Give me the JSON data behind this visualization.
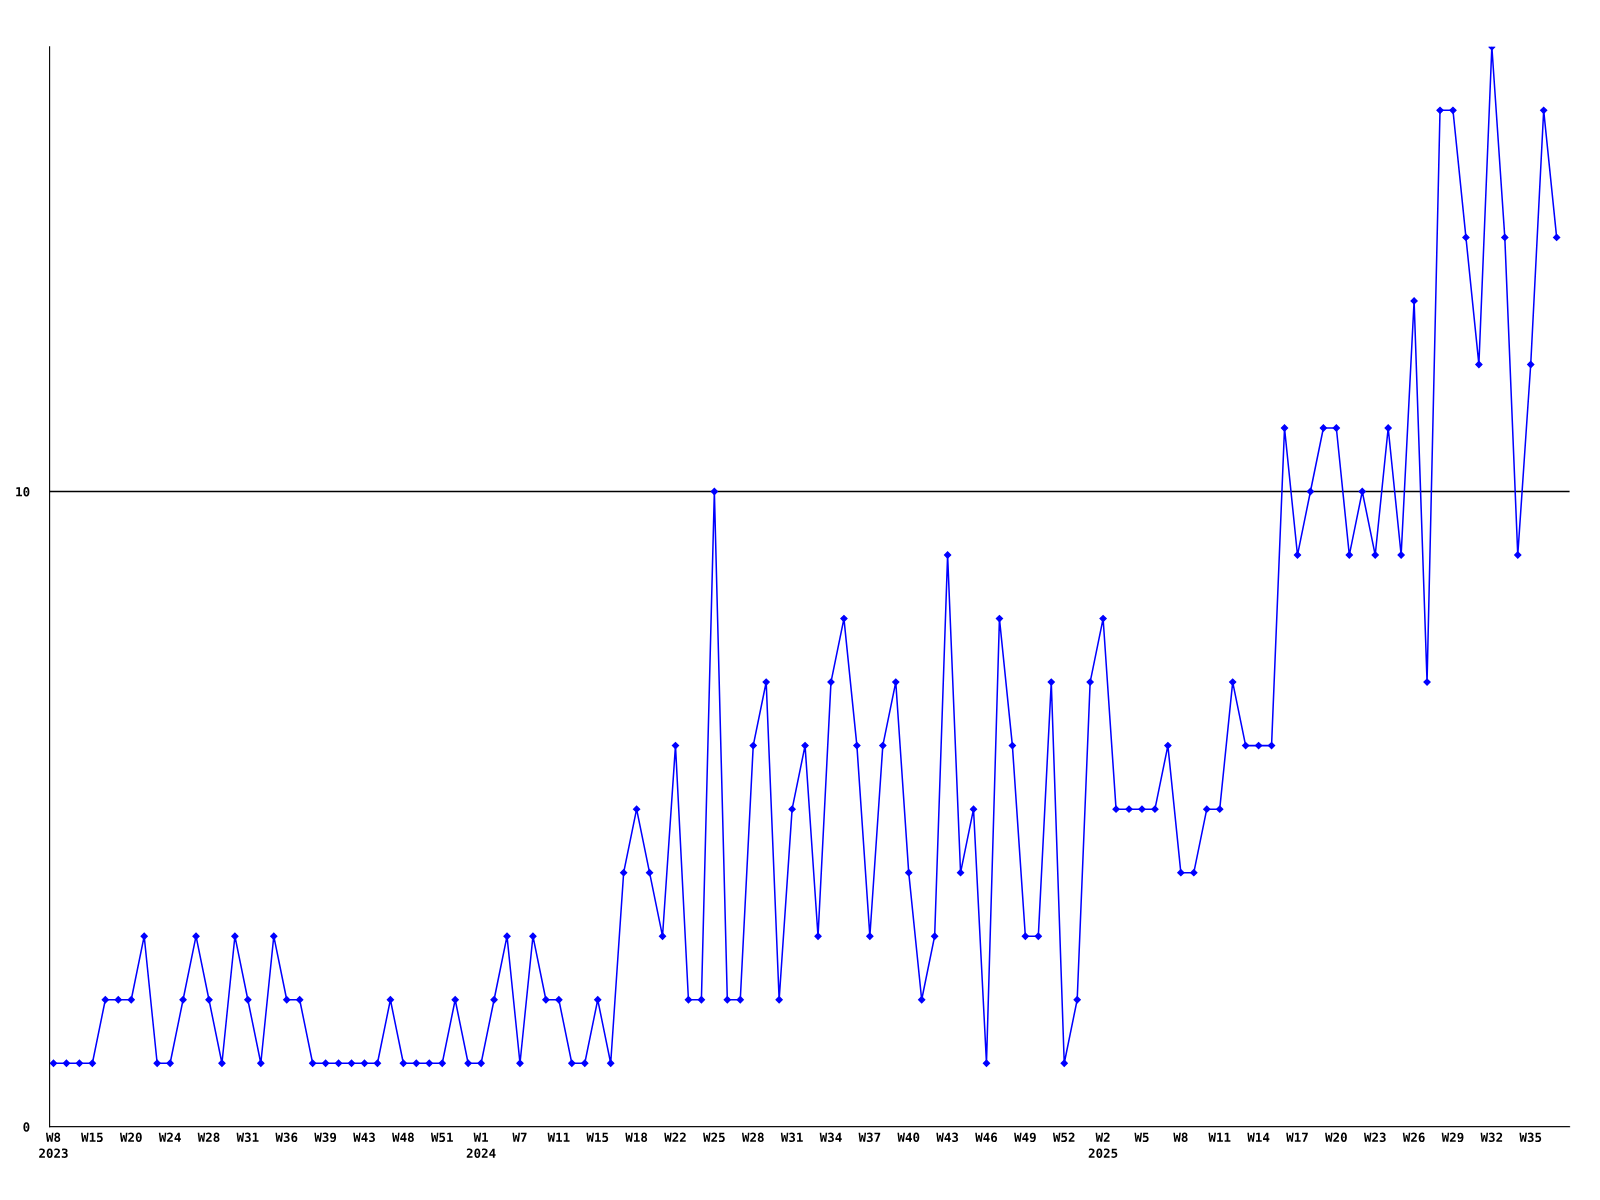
{
  "chart_data": {
    "type": "line",
    "categories": [
      "W8\n2023",
      null,
      null,
      "W15",
      null,
      null,
      "W20",
      null,
      null,
      "W24",
      null,
      null,
      "W28",
      null,
      null,
      "W31",
      null,
      null,
      "W36",
      null,
      null,
      "W39",
      null,
      null,
      "W43",
      null,
      null,
      "W48",
      null,
      null,
      "W51",
      null,
      null,
      "W1\n2024",
      null,
      null,
      "W7",
      null,
      null,
      "W11",
      null,
      null,
      "W15",
      null,
      null,
      "W18",
      null,
      null,
      "W22",
      null,
      null,
      "W25",
      null,
      null,
      "W28",
      null,
      null,
      "W31",
      null,
      null,
      "W34",
      null,
      null,
      "W37",
      null,
      null,
      "W40",
      null,
      null,
      "W43",
      null,
      null,
      "W46",
      null,
      null,
      "W49",
      null,
      null,
      "W52",
      null,
      null,
      "W2\n2025",
      null,
      null,
      "W5",
      null,
      null,
      "W8",
      null,
      null,
      "W11",
      null,
      null,
      "W14",
      null,
      null,
      "W17",
      null,
      null,
      "W20",
      null,
      null,
      "W23",
      null,
      null,
      "W26",
      null,
      null,
      "W29",
      null,
      null,
      "W32",
      null,
      null,
      "W35",
      null,
      null
    ],
    "series": [
      {
        "color": "#0000ff",
        "values": [
          1,
          1,
          1,
          1,
          2,
          2,
          2,
          3,
          1,
          1,
          2,
          3,
          2,
          1,
          3,
          2,
          1,
          3,
          2,
          2,
          1,
          1,
          1,
          1,
          1,
          1,
          2,
          1,
          1,
          1,
          1,
          2,
          1,
          1,
          2,
          3,
          1,
          3,
          2,
          2,
          1,
          1,
          2,
          1,
          4,
          5,
          4,
          3,
          6,
          2,
          2,
          10,
          2,
          2,
          6,
          7,
          2,
          5,
          6,
          3,
          7,
          8,
          6,
          3,
          6,
          7,
          4,
          2,
          3,
          9,
          4,
          5,
          1,
          8,
          6,
          3,
          3,
          7,
          1,
          2,
          7,
          8,
          5,
          5,
          5,
          5,
          6,
          4,
          4,
          5,
          5,
          7,
          6,
          6,
          6,
          11,
          9,
          10,
          11,
          11,
          9,
          10,
          9,
          11,
          9,
          13,
          7,
          16,
          16,
          14,
          12,
          17,
          14,
          9,
          12,
          16,
          14
        ]
      }
    ],
    "ylim": [
      0,
      17
    ],
    "yticks": [
      0,
      10
    ],
    "grid": "y",
    "marker": "diamond",
    "line_style": "solid",
    "legend": false
  }
}
